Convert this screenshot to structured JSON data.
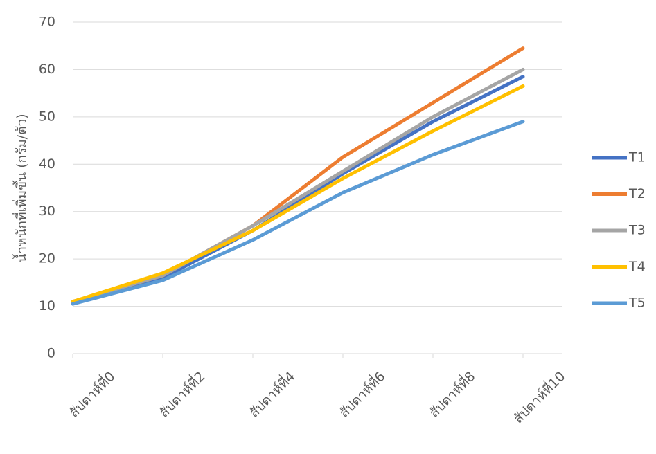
{
  "chart_data": {
    "type": "line",
    "y_label": "น้ำหนักที่เพิ่มขึ้น (กรัม/ตัว)",
    "categories": [
      "สัปดาห์ที่0",
      "สัปดาห์ที่2",
      "สัปดาห์ที่4",
      "สัปดาห์ที่6",
      "สัปดาห์ที่8",
      "สัปดาห์ที่10"
    ],
    "series": [
      {
        "name": "T1",
        "color": "#4472c4",
        "values": [
          11,
          16,
          26,
          38,
          49,
          58.5
        ]
      },
      {
        "name": "T2",
        "color": "#ed7d31",
        "values": [
          11,
          16.5,
          27,
          41.5,
          53,
          64.5
        ]
      },
      {
        "name": "T3",
        "color": "#a5a5a5",
        "values": [
          11,
          16.5,
          27,
          38.5,
          50,
          60
        ]
      },
      {
        "name": "T4",
        "color": "#ffc000",
        "values": [
          11,
          17,
          26,
          37,
          47,
          56.5
        ]
      },
      {
        "name": "T5",
        "color": "#5b9bd5",
        "values": [
          10.5,
          15.5,
          24,
          34,
          42,
          49
        ]
      }
    ],
    "ylim": [
      0,
      70
    ],
    "yticks": [
      0,
      10,
      20,
      30,
      40,
      50,
      60,
      70
    ],
    "grid": true,
    "legend": "right"
  }
}
